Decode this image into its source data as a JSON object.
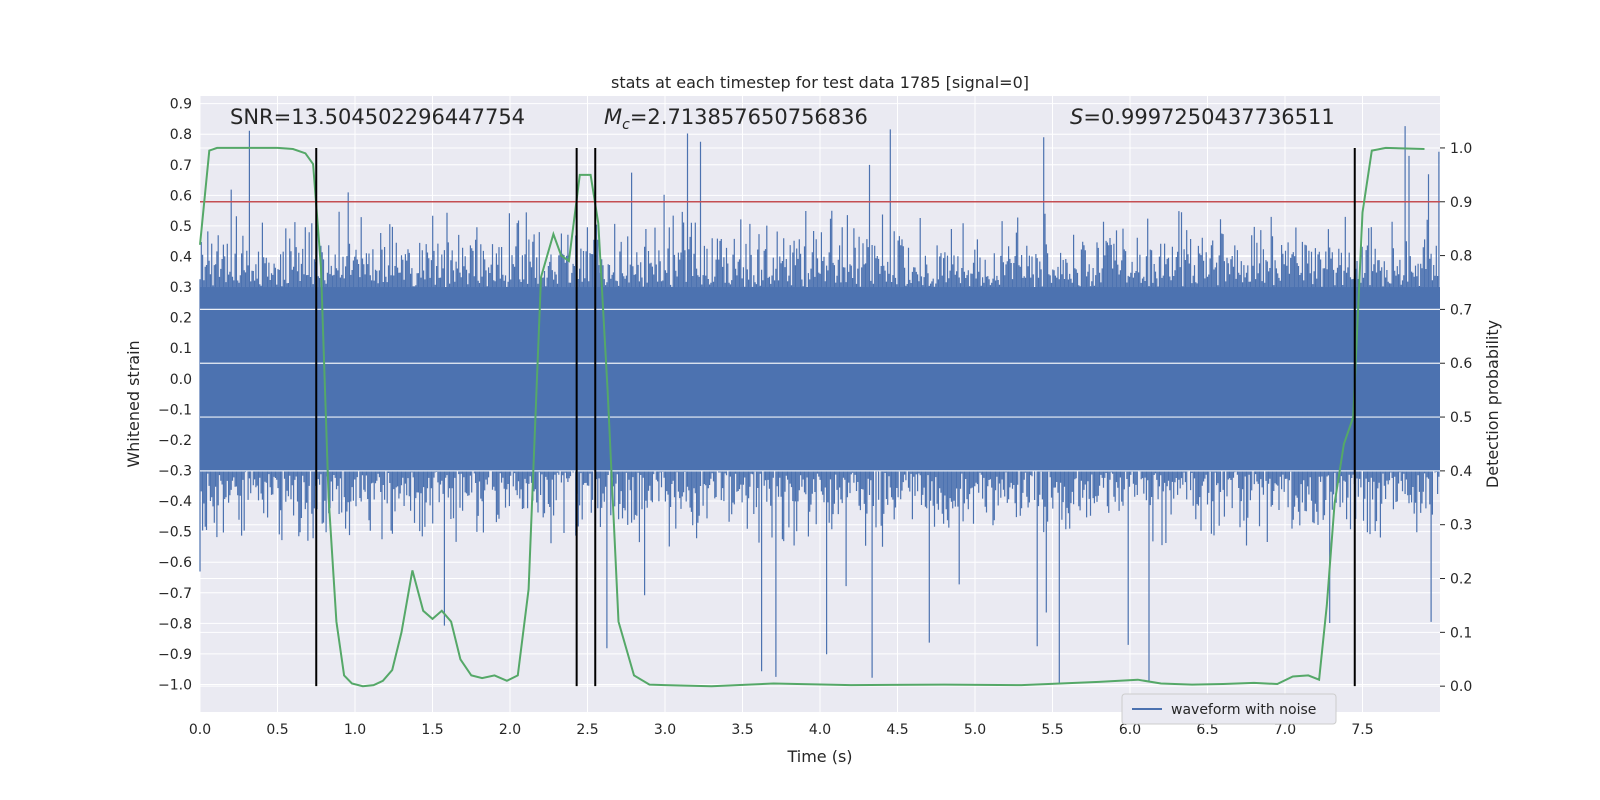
{
  "colors": {
    "background": "#eaeaf2",
    "grid": "#ffffff",
    "waveform": "#4c72b0",
    "probability": "#55a868",
    "threshold": "#c44e52",
    "marker": "#000000"
  },
  "chart_data": {
    "type": "line",
    "title": "stats at each timestep for test data 1785 [signal=0]",
    "xlabel": "Time (s)",
    "ylabel": "Whitened strain",
    "y2label": "Detection probability",
    "xlim": [
      0.0,
      8.0
    ],
    "ylim": [
      -1.09,
      0.925
    ],
    "y2lim": [
      -0.048,
      1.0965
    ],
    "x_ticks": [
      "0.0",
      "0.5",
      "1.0",
      "1.5",
      "2.0",
      "2.5",
      "3.0",
      "3.5",
      "4.0",
      "4.5",
      "5.0",
      "5.5",
      "6.0",
      "6.5",
      "7.0",
      "7.5"
    ],
    "y_ticks": [
      "0.9",
      "0.8",
      "0.7",
      "0.6",
      "0.5",
      "0.4",
      "0.3",
      "0.2",
      "0.1",
      "0.0",
      "−0.1",
      "−0.2",
      "−0.3",
      "−0.4",
      "−0.5",
      "−0.6",
      "−0.7",
      "−0.8",
      "−0.9",
      "−1.0"
    ],
    "y_tick_values": [
      0.9,
      0.8,
      0.7,
      0.6,
      0.5,
      0.4,
      0.3,
      0.2,
      0.1,
      0.0,
      -0.1,
      -0.2,
      -0.3,
      -0.4,
      -0.5,
      -0.6,
      -0.7,
      -0.8,
      -0.9,
      -1.0
    ],
    "y2_ticks": [
      "1.0",
      "0.9",
      "0.8",
      "0.7",
      "0.6",
      "0.5",
      "0.4",
      "0.3",
      "0.2",
      "0.1",
      "0.0"
    ],
    "y2_tick_values": [
      1.0,
      0.9,
      0.8,
      0.7,
      0.6,
      0.5,
      0.4,
      0.3,
      0.2,
      0.1,
      0.0
    ],
    "series": [
      {
        "name": "waveform with noise",
        "axis": "left",
        "style": "dense-noise",
        "x_range": [
          0.0,
          8.0
        ],
        "core_amplitude": 0.3,
        "typical_peak": 0.45,
        "max_peak": 0.83,
        "min_trough": -1.0
      },
      {
        "name": "Detection probability",
        "axis": "right",
        "x": [
          0.0,
          0.06,
          0.11,
          0.2,
          0.3,
          0.4,
          0.5,
          0.6,
          0.68,
          0.73,
          0.78,
          0.83,
          0.88,
          0.93,
          0.98,
          1.05,
          1.12,
          1.18,
          1.24,
          1.3,
          1.37,
          1.44,
          1.5,
          1.56,
          1.62,
          1.68,
          1.75,
          1.82,
          1.9,
          1.98,
          2.05,
          2.12,
          2.2,
          2.28,
          2.33,
          2.38,
          2.45,
          2.52,
          2.57,
          2.63,
          2.7,
          2.8,
          2.9,
          3.0,
          3.3,
          3.7,
          4.2,
          4.8,
          5.3,
          5.8,
          6.05,
          6.2,
          6.4,
          6.6,
          6.8,
          6.95,
          7.05,
          7.15,
          7.22,
          7.27,
          7.32,
          7.38,
          7.44,
          7.5,
          7.56,
          7.65,
          7.9
        ],
        "y": [
          0.82,
          0.995,
          1.0,
          1.0,
          1.0,
          1.0,
          1.0,
          0.998,
          0.99,
          0.97,
          0.78,
          0.35,
          0.12,
          0.02,
          0.005,
          0.0,
          0.002,
          0.01,
          0.03,
          0.1,
          0.215,
          0.14,
          0.125,
          0.14,
          0.12,
          0.05,
          0.02,
          0.015,
          0.02,
          0.01,
          0.02,
          0.18,
          0.76,
          0.84,
          0.8,
          0.79,
          0.95,
          0.95,
          0.86,
          0.55,
          0.12,
          0.02,
          0.003,
          0.002,
          0.0,
          0.005,
          0.002,
          0.003,
          0.002,
          0.008,
          0.012,
          0.005,
          0.003,
          0.004,
          0.006,
          0.004,
          0.018,
          0.02,
          0.012,
          0.15,
          0.34,
          0.45,
          0.5,
          0.88,
          0.995,
          1.0,
          0.998
        ]
      },
      {
        "name": "threshold",
        "axis": "right",
        "y_constant": 0.9
      }
    ],
    "vertical_markers_x": [
      0.75,
      2.43,
      2.55,
      7.45
    ],
    "annotations": [
      {
        "id": "snr",
        "text": "SNR=13.504502296447754",
        "x": 0.2
      },
      {
        "id": "mc",
        "label_prefix": "M",
        "subscript": "c",
        "text": "=2.713857650756836",
        "x": 2.6
      },
      {
        "id": "s",
        "label_prefix": "S",
        "text": "=0.9997250437736511",
        "x": 5.6
      }
    ],
    "legend": {
      "position": "lower-right",
      "entries": [
        "waveform with noise"
      ]
    }
  }
}
